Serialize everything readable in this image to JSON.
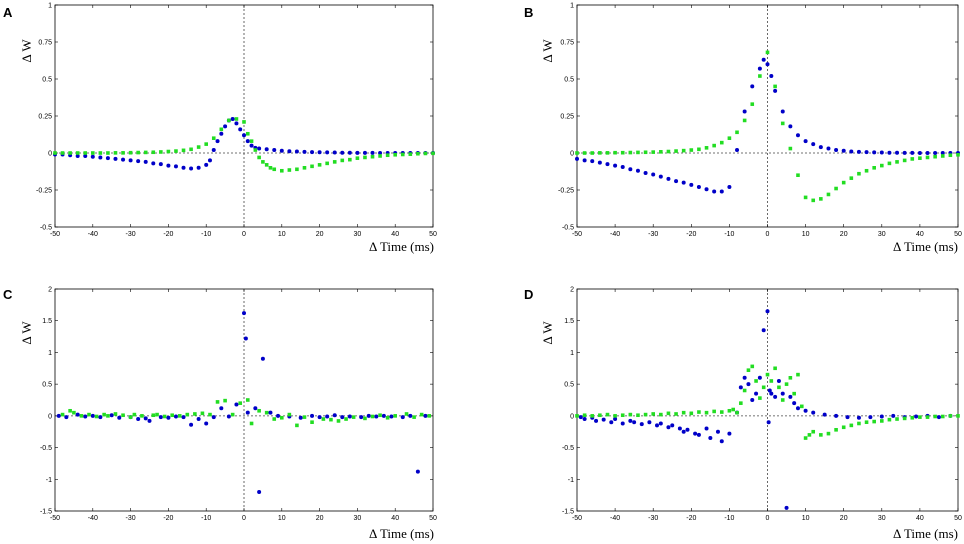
{
  "colors": {
    "blue": "#0000c8",
    "green": "#22dd22",
    "axis": "#000000",
    "zero_line": "#444444"
  },
  "chart_data": [
    {
      "panel": "A",
      "type": "scatter",
      "xlabel": "Δ Time (ms)",
      "ylabel": "Δ W",
      "xlim": [
        -50,
        50
      ],
      "ylim": [
        -0.5,
        1.0
      ],
      "xticks": [
        -50,
        -40,
        -30,
        -20,
        -10,
        0,
        10,
        20,
        30,
        40,
        50
      ],
      "yticks": [
        -0.5,
        -0.25,
        0,
        0.25,
        0.5,
        0.75,
        1
      ],
      "ytick_labels": [
        "-0.5",
        "-0.25",
        "0",
        "0.25",
        "0.5",
        "0.75",
        "1"
      ],
      "grid": false,
      "series": [
        {
          "name": "blue",
          "color": "blue",
          "x": [
            -50,
            -48,
            -46,
            -44,
            -42,
            -40,
            -38,
            -36,
            -34,
            -32,
            -30,
            -28,
            -26,
            -24,
            -22,
            -20,
            -18,
            -16,
            -14,
            -12,
            -10,
            -9,
            -8,
            -7,
            -6,
            -5,
            -4,
            -3,
            -2,
            -1,
            0,
            1,
            2,
            3,
            4,
            6,
            8,
            10,
            12,
            14,
            16,
            18,
            20,
            22,
            24,
            26,
            28,
            30,
            32,
            34,
            36,
            38,
            40,
            42,
            44,
            46,
            48,
            50
          ],
          "y": [
            -0.01,
            -0.01,
            -0.015,
            -0.02,
            -0.02,
            -0.025,
            -0.03,
            -0.035,
            -0.04,
            -0.045,
            -0.05,
            -0.055,
            -0.06,
            -0.07,
            -0.075,
            -0.085,
            -0.09,
            -0.1,
            -0.105,
            -0.1,
            -0.08,
            -0.05,
            0.02,
            0.08,
            0.13,
            0.18,
            0.22,
            0.23,
            0.2,
            0.16,
            0.12,
            0.08,
            0.05,
            0.035,
            0.03,
            0.025,
            0.02,
            0.015,
            0.012,
            0.01,
            0.008,
            0.006,
            0.005,
            0.004,
            0.003,
            0.002,
            0.002,
            0.001,
            0.001,
            0.001,
            0,
            0,
            0,
            0,
            0,
            0,
            0,
            0
          ]
        },
        {
          "name": "green",
          "color": "green",
          "x": [
            -50,
            -48,
            -46,
            -44,
            -42,
            -40,
            -38,
            -36,
            -34,
            -32,
            -30,
            -28,
            -26,
            -24,
            -22,
            -20,
            -18,
            -16,
            -14,
            -12,
            -10,
            -8,
            -6,
            -4,
            -2,
            0,
            1,
            2,
            3,
            4,
            5,
            6,
            7,
            8,
            10,
            12,
            14,
            16,
            18,
            20,
            22,
            24,
            26,
            28,
            30,
            32,
            34,
            36,
            38,
            40,
            42,
            44,
            46,
            48,
            50
          ],
          "y": [
            0,
            0,
            0,
            0,
            0,
            0,
            0,
            0,
            0.001,
            0.001,
            0.002,
            0.003,
            0.004,
            0.005,
            0.007,
            0.01,
            0.013,
            0.018,
            0.025,
            0.04,
            0.06,
            0.1,
            0.16,
            0.22,
            0.23,
            0.21,
            0.13,
            0.08,
            0.02,
            -0.03,
            -0.06,
            -0.08,
            -0.1,
            -0.11,
            -0.12,
            -0.115,
            -0.11,
            -0.1,
            -0.09,
            -0.08,
            -0.07,
            -0.06,
            -0.05,
            -0.045,
            -0.035,
            -0.03,
            -0.025,
            -0.02,
            -0.015,
            -0.012,
            -0.01,
            -0.008,
            -0.005,
            -0.003,
            -0.002
          ]
        }
      ]
    },
    {
      "panel": "B",
      "type": "scatter",
      "xlabel": "Δ Time (ms)",
      "ylabel": "Δ W",
      "xlim": [
        -50,
        50
      ],
      "ylim": [
        -0.5,
        1.0
      ],
      "xticks": [
        -50,
        -40,
        -30,
        -20,
        -10,
        0,
        10,
        20,
        30,
        40,
        50
      ],
      "yticks": [
        -0.5,
        -0.25,
        0,
        0.25,
        0.5,
        0.75,
        1
      ],
      "ytick_labels": [
        "-0.5",
        "-0.25",
        "0",
        "0.25",
        "0.5",
        "0.75",
        "1"
      ],
      "grid": false,
      "series": [
        {
          "name": "blue",
          "color": "blue",
          "x": [
            -50,
            -48,
            -46,
            -44,
            -42,
            -40,
            -38,
            -36,
            -34,
            -32,
            -30,
            -28,
            -26,
            -24,
            -22,
            -20,
            -18,
            -16,
            -14,
            -12,
            -10,
            -8,
            -6,
            -4,
            -2,
            -1,
            0,
            1,
            2,
            4,
            6,
            8,
            10,
            12,
            14,
            16,
            18,
            20,
            22,
            24,
            26,
            28,
            30,
            32,
            34,
            36,
            38,
            40,
            42,
            44,
            46,
            48,
            50
          ],
          "y": [
            -0.04,
            -0.05,
            -0.055,
            -0.065,
            -0.075,
            -0.085,
            -0.095,
            -0.11,
            -0.12,
            -0.135,
            -0.145,
            -0.16,
            -0.175,
            -0.19,
            -0.2,
            -0.215,
            -0.23,
            -0.245,
            -0.26,
            -0.26,
            -0.23,
            0.02,
            0.28,
            0.45,
            0.57,
            0.63,
            0.6,
            0.52,
            0.42,
            0.28,
            0.18,
            0.12,
            0.08,
            0.06,
            0.04,
            0.03,
            0.02,
            0.015,
            0.01,
            0.008,
            0.006,
            0.004,
            0.003,
            0.002,
            0.002,
            0.001,
            0.001,
            0,
            0,
            0,
            0,
            0,
            0
          ]
        },
        {
          "name": "green",
          "color": "green",
          "x": [
            -50,
            -48,
            -46,
            -44,
            -42,
            -40,
            -38,
            -36,
            -34,
            -32,
            -30,
            -28,
            -26,
            -24,
            -22,
            -20,
            -18,
            -16,
            -14,
            -12,
            -10,
            -8,
            -6,
            -4,
            -2,
            0,
            2,
            4,
            6,
            8,
            10,
            12,
            14,
            16,
            18,
            20,
            22,
            24,
            26,
            28,
            30,
            32,
            34,
            36,
            38,
            40,
            42,
            44,
            46,
            48,
            50
          ],
          "y": [
            0,
            0,
            0,
            0.001,
            0.001,
            0.002,
            0.002,
            0.003,
            0.004,
            0.005,
            0.006,
            0.008,
            0.01,
            0.013,
            0.016,
            0.02,
            0.025,
            0.035,
            0.05,
            0.07,
            0.1,
            0.14,
            0.22,
            0.33,
            0.52,
            0.68,
            0.45,
            0.2,
            0.03,
            -0.15,
            -0.3,
            -0.32,
            -0.31,
            -0.28,
            -0.24,
            -0.2,
            -0.17,
            -0.14,
            -0.12,
            -0.1,
            -0.085,
            -0.07,
            -0.06,
            -0.05,
            -0.04,
            -0.035,
            -0.03,
            -0.025,
            -0.02,
            -0.015,
            -0.012
          ]
        }
      ]
    },
    {
      "panel": "C",
      "type": "scatter",
      "xlabel": "Δ Time (ms)",
      "ylabel": "Δ W",
      "xlim": [
        -50,
        50
      ],
      "ylim": [
        -1.5,
        2.0
      ],
      "xticks": [
        -50,
        -40,
        -30,
        -20,
        -10,
        0,
        10,
        20,
        30,
        40,
        50
      ],
      "yticks": [
        -1.5,
        -1,
        -0.5,
        0,
        0.5,
        1,
        1.5,
        2
      ],
      "ytick_labels": [
        "-1.5",
        "-1",
        "-0.5",
        "0",
        "0.5",
        "1",
        "1.5",
        "2"
      ],
      "grid": false,
      "series": [
        {
          "name": "blue",
          "color": "blue",
          "x": [
            -49,
            -47,
            -44,
            -42,
            -40,
            -38,
            -35,
            -33,
            -30,
            -28,
            -26,
            -25,
            -22,
            -20,
            -18,
            -16,
            -14,
            -12,
            -10,
            -8,
            -6,
            -4,
            -2,
            0,
            0.5,
            1,
            3,
            4,
            5,
            7,
            9,
            12,
            15,
            18,
            20,
            22,
            24,
            26,
            28,
            31,
            33,
            35,
            37,
            39,
            42,
            44,
            46,
            48
          ],
          "y": [
            0,
            -0.02,
            0.02,
            -0.01,
            0,
            -0.02,
            0.01,
            -0.03,
            -0.02,
            -0.05,
            -0.04,
            -0.08,
            -0.02,
            -0.03,
            -0.01,
            -0.02,
            -0.14,
            -0.05,
            -0.12,
            -0.02,
            0.12,
            -0.01,
            0.18,
            1.62,
            1.22,
            0.05,
            0.12,
            -1.2,
            0.9,
            0.05,
            0,
            -0.01,
            -0.03,
            0,
            -0.02,
            -0.01,
            0.01,
            -0.02,
            -0.01,
            -0.02,
            0,
            -0.01,
            0,
            -0.01,
            -0.02,
            0,
            -0.88,
            0
          ]
        },
        {
          "name": "green",
          "color": "green",
          "x": [
            -48,
            -46,
            -45,
            -43,
            -41,
            -39,
            -37,
            -36,
            -34,
            -32,
            -30,
            -29,
            -27,
            -24,
            -23,
            -21,
            -19,
            -17,
            -15,
            -13,
            -11,
            -9,
            -7,
            -5,
            -3,
            -1,
            1,
            2,
            4,
            6,
            8,
            10,
            12,
            14,
            16,
            18,
            21,
            23,
            25,
            27,
            29,
            32,
            34,
            36,
            38,
            40,
            43,
            45,
            47,
            49
          ],
          "y": [
            0.02,
            0.08,
            0.05,
            0,
            0.02,
            -0.01,
            0.02,
            0,
            0.03,
            0.01,
            -0.02,
            0.02,
            0,
            0.01,
            0.02,
            -0.01,
            0.01,
            0,
            0.02,
            0.03,
            0.04,
            0.02,
            0.22,
            0.24,
            0.02,
            0.2,
            0.25,
            -0.12,
            0.08,
            0.05,
            -0.05,
            -0.03,
            0.02,
            -0.15,
            -0.02,
            -0.1,
            -0.05,
            -0.06,
            -0.08,
            -0.05,
            -0.02,
            -0.04,
            -0.01,
            0.01,
            -0.03,
            0,
            0.03,
            -0.02,
            0.02,
            0
          ]
        }
      ]
    },
    {
      "panel": "D",
      "type": "scatter",
      "xlabel": "Δ Time (ms)",
      "ylabel": "Δ W",
      "xlim": [
        -50,
        50
      ],
      "ylim": [
        -1.5,
        2.0
      ],
      "xticks": [
        -50,
        -40,
        -30,
        -20,
        -10,
        0,
        10,
        20,
        30,
        40,
        50
      ],
      "yticks": [
        -1.5,
        -1,
        -0.5,
        0,
        0.5,
        1,
        1.5,
        2
      ],
      "ytick_labels": [
        "-1.5",
        "-1",
        "-0.5",
        "0",
        "0.5",
        "1",
        "1.5",
        "2"
      ],
      "grid": false,
      "series": [
        {
          "name": "blue",
          "color": "blue",
          "x": [
            -49,
            -48,
            -46,
            -45,
            -43,
            -41,
            -40,
            -38,
            -36,
            -35,
            -33,
            -31,
            -29,
            -28,
            -26,
            -25,
            -23,
            -22,
            -21,
            -19,
            -18,
            -16,
            -15,
            -13,
            -12,
            -10,
            -8,
            -7,
            -6,
            -5,
            -4,
            -3,
            -2,
            -1,
            0,
            0.3,
            0.6,
            1,
            2,
            3,
            4,
            5,
            6,
            7,
            8,
            10,
            12,
            15,
            18,
            21,
            24,
            27,
            30,
            33,
            36,
            39,
            42,
            45,
            48
          ],
          "y": [
            -0.02,
            -0.05,
            -0.03,
            -0.08,
            -0.06,
            -0.1,
            -0.05,
            -0.12,
            -0.08,
            -0.1,
            -0.13,
            -0.1,
            -0.15,
            -0.12,
            -0.18,
            -0.15,
            -0.2,
            -0.25,
            -0.22,
            -0.28,
            -0.3,
            -0.2,
            -0.35,
            -0.25,
            -0.4,
            -0.28,
            0.05,
            0.45,
            0.6,
            0.5,
            0.25,
            0.35,
            0.6,
            1.35,
            1.65,
            -0.1,
            0.4,
            0.35,
            0.3,
            0.55,
            0.35,
            -1.45,
            0.3,
            0.2,
            0.12,
            0.08,
            0.05,
            0.02,
            0,
            -0.02,
            -0.03,
            -0.02,
            -0.01,
            0,
            -0.02,
            -0.01,
            0,
            -0.02,
            0
          ]
        },
        {
          "name": "green",
          "color": "green",
          "x": [
            -50,
            -48,
            -46,
            -44,
            -42,
            -40,
            -38,
            -36,
            -34,
            -32,
            -30,
            -28,
            -26,
            -24,
            -22,
            -20,
            -18,
            -16,
            -14,
            -12,
            -10,
            -9,
            -8,
            -7,
            -6,
            -5,
            -4,
            -3,
            -2,
            -1,
            0,
            1,
            2,
            3,
            4,
            5,
            6,
            7,
            8,
            9,
            10,
            11,
            12,
            14,
            16,
            18,
            20,
            22,
            24,
            26,
            28,
            30,
            32,
            34,
            36,
            38,
            40,
            42,
            44,
            46,
            48,
            50
          ],
          "y": [
            0,
            0.01,
            0,
            0.01,
            0.02,
            0,
            0.01,
            0.02,
            0.01,
            0.02,
            0.03,
            0.02,
            0.04,
            0.03,
            0.05,
            0.04,
            0.06,
            0.05,
            0.07,
            0.06,
            0.08,
            0.1,
            0.05,
            0.2,
            0.4,
            0.72,
            0.78,
            0.55,
            0.28,
            0.45,
            0.65,
            0.55,
            0.75,
            0.45,
            0.25,
            0.5,
            0.6,
            0.35,
            0.65,
            0.15,
            -0.35,
            -0.3,
            -0.25,
            -0.3,
            -0.28,
            -0.22,
            -0.18,
            -0.15,
            -0.12,
            -0.1,
            -0.09,
            -0.08,
            -0.06,
            -0.05,
            -0.04,
            -0.03,
            -0.02,
            -0.02,
            -0.01,
            -0.01,
            0,
            0
          ]
        }
      ]
    }
  ]
}
